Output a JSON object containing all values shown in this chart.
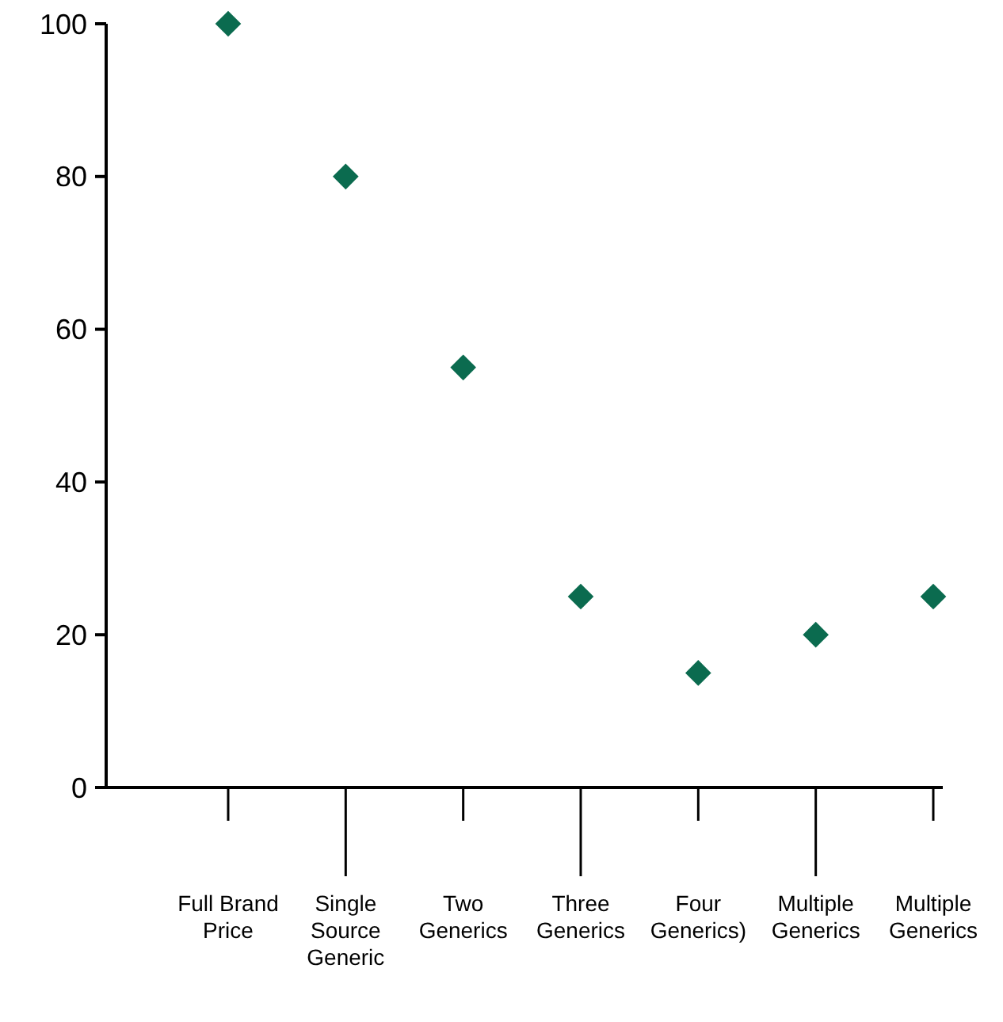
{
  "chart_data": {
    "type": "scatter",
    "categories": [
      "Full Brand Price",
      "Single Source Generic",
      "Two Generics",
      "Three Generics",
      "Four Generics)",
      "Multiple Generics",
      "Multiple Generics"
    ],
    "values": [
      100,
      80,
      55,
      25,
      15,
      20,
      25
    ],
    "color": "#0b6b4f",
    "marker": "diamond",
    "ylim": [
      0,
      100
    ],
    "yticks": [
      0,
      20,
      40,
      60,
      80,
      100
    ],
    "grid": false
  }
}
